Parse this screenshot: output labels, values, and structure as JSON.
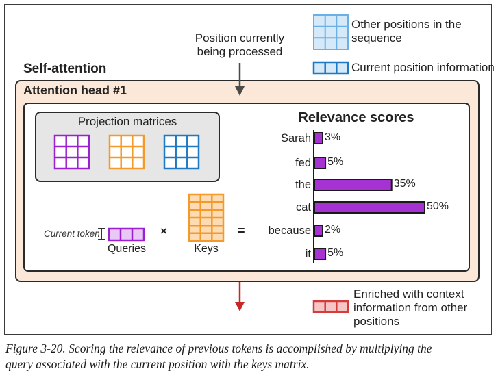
{
  "legend": {
    "other_positions": "Other positions in the sequence",
    "other_positions_line1": "Other positions in the",
    "other_positions_line2": "sequence",
    "current_position": "Current position information",
    "enriched_line1": "Enriched with context",
    "enriched_line2": "information from other",
    "enriched_line3": "positions"
  },
  "annotation": {
    "position_line1": "Position currently",
    "position_line2": "being processed"
  },
  "labels": {
    "self_attention": "Self-attention",
    "attention_head": "Attention head #1",
    "projection_matrices": "Projection matrices",
    "current_token": "Current token",
    "queries": "Queries",
    "keys": "Keys",
    "times": "×",
    "equals": "="
  },
  "chart_data": {
    "type": "bar",
    "title": "Relevance scores",
    "categories": [
      "Sarah",
      "fed",
      "the",
      "cat",
      "because",
      "it"
    ],
    "values": [
      3,
      5,
      35,
      50,
      2,
      5
    ],
    "value_labels": [
      "3%",
      "5%",
      "35%",
      "50%",
      "2%",
      "5%"
    ],
    "unit": "%",
    "orientation": "horizontal",
    "color": "#a632d4"
  },
  "colors": {
    "queries": "#9b20d0",
    "keys": "#f39a2a",
    "values": "#1f78c2",
    "other_positions": "#6ab0e6",
    "current_position": "#1f78c2",
    "enriched": "#d43c3c",
    "bar": "#a632d4",
    "head_bg": "#fbe8d8"
  },
  "caption": {
    "line1": "Figure 3-20. Scoring the relevance of previous tokens is accomplished by multiplying the",
    "line2": "query associated with the current position with the keys matrix."
  }
}
